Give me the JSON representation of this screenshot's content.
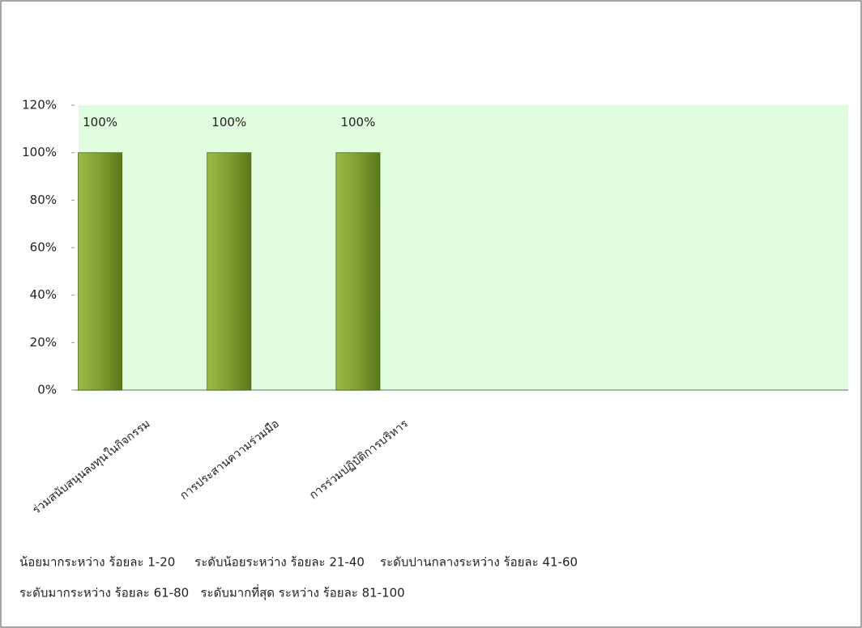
{
  "chart_data": {
    "type": "bar",
    "categories": [
      "ร่วมสนับสนุนลงทุนในกิจกรรม",
      "การประสานความร่วมมือ",
      "การร่วมปฏิบัติการบริหาร",
      null,
      null,
      null
    ],
    "values": [
      100,
      100,
      100,
      null,
      null,
      null
    ],
    "value_labels": [
      "100%",
      "100%",
      "100%",
      null,
      null,
      null
    ],
    "color": "#7a9a2e",
    "plot_background": "#e0fde0",
    "ylim": [
      0,
      120
    ],
    "yticks": [
      {
        "value": 0,
        "label": "0%"
      },
      {
        "value": 20,
        "label": "20%"
      },
      {
        "value": 40,
        "label": "40%"
      },
      {
        "value": 60,
        "label": "60%"
      },
      {
        "value": 80,
        "label": "80%"
      },
      {
        "value": 100,
        "label": "100%"
      },
      {
        "value": 120,
        "label": "120%"
      }
    ],
    "grid": false,
    "annotations": [
      "น้อยมากระหว่าง ร้อยละ 1-20     ระดับน้อยระหว่าง ร้อยละ 21-40    ระดับปานกลางระหว่าง ร้อยละ 41-60",
      "ระดับมากระหว่าง ร้อยละ 61-80   ระดับมากที่สุด ระหว่าง ร้อยละ 81-100"
    ]
  }
}
